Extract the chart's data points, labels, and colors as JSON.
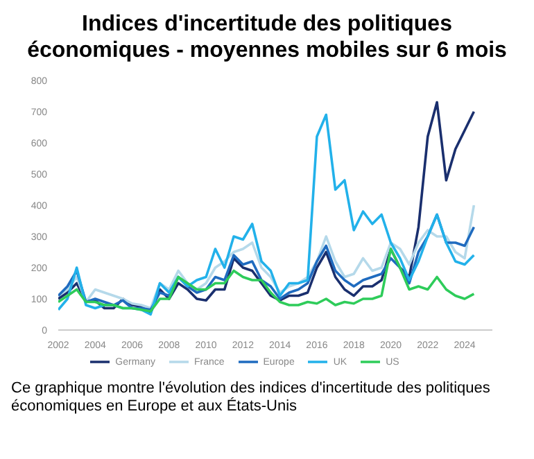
{
  "chart_data": {
    "type": "line",
    "title": "Indices d'incertitude des politiques économiques -  moyennes mobiles sur 6 mois",
    "annotations": [
      "Ce graphique montre l'évolution des indices d'incertitude des politiques économiques en Europe et aux États-Unis"
    ],
    "x": [
      2002,
      2002.5,
      2003,
      2003.5,
      2004,
      2004.5,
      2005,
      2005.5,
      2006,
      2006.5,
      2007,
      2007.5,
      2008,
      2008.5,
      2009,
      2009.5,
      2010,
      2010.5,
      2011,
      2011.5,
      2012,
      2012.5,
      2013,
      2013.5,
      2014,
      2014.5,
      2015,
      2015.5,
      2016,
      2016.5,
      2017,
      2017.5,
      2018,
      2018.5,
      2019,
      2019.5,
      2020,
      2020.5,
      2021,
      2021.5,
      2022,
      2022.5,
      2023,
      2023.5,
      2024,
      2024.5
    ],
    "series": [
      {
        "name": "Germany",
        "color": "#1a2f6e",
        "values": [
          100,
          120,
          150,
          90,
          95,
          70,
          70,
          100,
          80,
          75,
          55,
          130,
          100,
          150,
          130,
          100,
          95,
          130,
          130,
          230,
          200,
          190,
          150,
          110,
          95,
          110,
          110,
          120,
          200,
          250,
          170,
          130,
          110,
          140,
          140,
          160,
          260,
          200,
          170,
          330,
          620,
          730,
          480,
          580,
          640,
          700
        ]
      },
      {
        "name": "France",
        "color": "#b5d9ea",
        "values": [
          110,
          130,
          170,
          90,
          130,
          120,
          110,
          100,
          85,
          80,
          70,
          150,
          130,
          190,
          150,
          130,
          150,
          200,
          220,
          250,
          260,
          280,
          200,
          170,
          120,
          140,
          150,
          170,
          220,
          300,
          220,
          170,
          180,
          230,
          190,
          200,
          280,
          260,
          210,
          280,
          320,
          300,
          300,
          250,
          230,
          400
        ]
      },
      {
        "name": "Europe",
        "color": "#1f6bbf",
        "values": [
          110,
          140,
          190,
          90,
          100,
          90,
          80,
          95,
          70,
          70,
          65,
          120,
          110,
          170,
          140,
          120,
          130,
          170,
          160,
          240,
          210,
          220,
          160,
          140,
          100,
          120,
          130,
          150,
          220,
          270,
          190,
          160,
          140,
          160,
          170,
          180,
          230,
          200,
          150,
          250,
          300,
          370,
          280,
          280,
          270,
          330
        ]
      },
      {
        "name": "UK",
        "color": "#22b1ea",
        "values": [
          65,
          100,
          200,
          80,
          70,
          80,
          80,
          70,
          70,
          65,
          50,
          150,
          120,
          170,
          140,
          160,
          170,
          260,
          200,
          300,
          290,
          340,
          220,
          190,
          110,
          150,
          150,
          160,
          620,
          690,
          450,
          480,
          320,
          380,
          340,
          370,
          280,
          230,
          160,
          220,
          300,
          370,
          280,
          220,
          210,
          240
        ]
      },
      {
        "name": "US",
        "color": "#2ecc5a",
        "values": [
          90,
          110,
          130,
          90,
          90,
          80,
          80,
          70,
          70,
          65,
          60,
          100,
          100,
          170,
          150,
          130,
          130,
          150,
          150,
          190,
          170,
          160,
          160,
          120,
          90,
          80,
          80,
          90,
          85,
          100,
          80,
          90,
          85,
          100,
          100,
          110,
          260,
          200,
          130,
          140,
          130,
          170,
          130,
          110,
          100,
          116
        ]
      }
    ],
    "xlim": [
      2002,
      2025.5
    ],
    "xticks": [
      2002,
      2004,
      2006,
      2008,
      2010,
      2012,
      2014,
      2016,
      2018,
      2020,
      2022,
      2024
    ],
    "ylim": [
      0,
      800
    ],
    "yticks": [
      0,
      100,
      200,
      300,
      400,
      500,
      600,
      700,
      800
    ],
    "legend": "bottom",
    "grid": false,
    "marker": "none",
    "line_style": "solid"
  }
}
